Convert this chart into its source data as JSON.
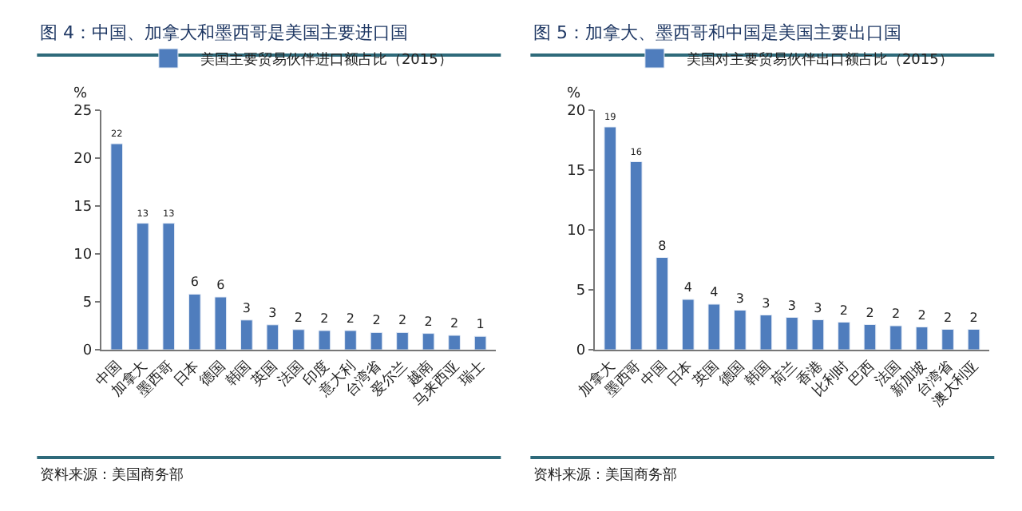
{
  "chart_data": [
    {
      "type": "bar",
      "title": "图 4：中国、加拿大和墨西哥是美国主要进口国",
      "ylabel": "%",
      "categories": [
        "中国",
        "加拿大",
        "墨西哥",
        "日本",
        "德国",
        "韩国",
        "英国",
        "法国",
        "印度",
        "意大利",
        "台湾省",
        "爱尔兰",
        "越南",
        "马来西亚",
        "瑞士"
      ],
      "series": [
        {
          "name": "美国主要贸易伙伴进口额占比（2015）",
          "color": "#4f7dbd",
          "values": [
            21.5,
            13.2,
            13.2,
            5.8,
            5.5,
            3.1,
            2.6,
            2.1,
            2.0,
            2.0,
            1.8,
            1.8,
            1.7,
            1.5,
            1.4
          ],
          "value_labels": [
            "22",
            "13",
            "13",
            "6",
            "6",
            "3",
            "3",
            "2",
            "2",
            "2",
            "2",
            "2",
            "2",
            "2",
            "1"
          ]
        }
      ],
      "ylim": [
        0,
        25
      ],
      "yticks": [
        0,
        5,
        10,
        15,
        20,
        25
      ],
      "grid": false,
      "legend": "top",
      "annotations": [
        "资料来源：美国商务部"
      ]
    },
    {
      "type": "bar",
      "title": "图 5：加拿大、墨西哥和中国是美国主要出口国",
      "ylabel": "%",
      "categories": [
        "加拿大",
        "墨西哥",
        "中国",
        "日本",
        "英国",
        "德国",
        "韩国",
        "荷兰",
        "香港",
        "比利时",
        "巴西",
        "法国",
        "新加坡",
        "台湾省",
        "澳大利亚"
      ],
      "series": [
        {
          "name": "美国对主要贸易伙伴出口额占比（2015）",
          "color": "#4f7dbd",
          "values": [
            18.6,
            15.7,
            7.7,
            4.2,
            3.8,
            3.3,
            2.9,
            2.7,
            2.5,
            2.3,
            2.1,
            2.0,
            1.9,
            1.7,
            1.7
          ],
          "value_labels": [
            "19",
            "16",
            "8",
            "4",
            "4",
            "3",
            "3",
            "3",
            "3",
            "2",
            "2",
            "2",
            "2",
            "2",
            "2"
          ]
        }
      ],
      "ylim": [
        0,
        20
      ],
      "yticks": [
        0,
        5,
        10,
        15,
        20
      ],
      "grid": false,
      "legend": "top",
      "annotations": [
        "资料来源：美国商务部"
      ]
    }
  ]
}
